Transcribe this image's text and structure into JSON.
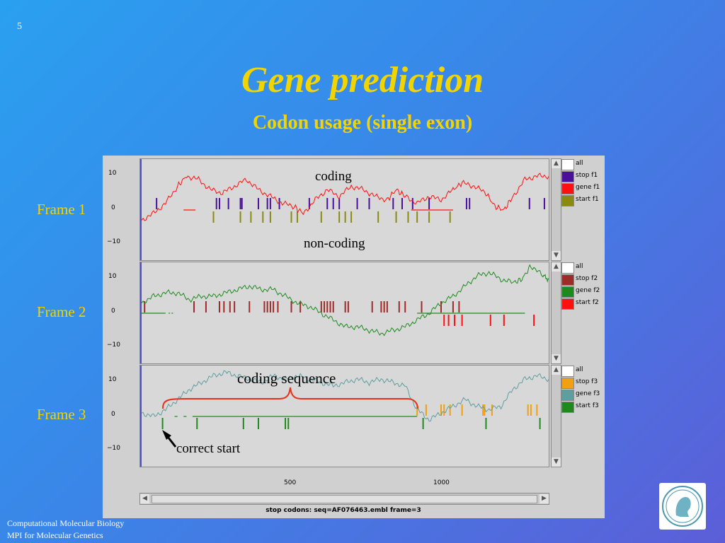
{
  "slide": {
    "number": "5",
    "title": "Gene prediction",
    "subtitle": "Codon usage (single exon)",
    "frame_labels": [
      "Frame 1",
      "Frame 2",
      "Frame 3"
    ],
    "annotations": {
      "coding": "coding",
      "non_coding": "non-coding",
      "coding_sequence": "coding sequence",
      "correct_start": "correct start"
    },
    "footer": {
      "line1": "Computational Molecular Biology",
      "line2": "MPI for Molecular Genetics"
    },
    "logo": "max-planck-logo"
  },
  "app": {
    "y_ticks": [
      "10",
      "0",
      "−10"
    ],
    "x_ticks": [
      "500",
      "1000"
    ],
    "status_text": "stop codons: seq=AF076463.embl frame=3",
    "panels": [
      {
        "legend": [
          {
            "label": "all",
            "color": "#ffffff"
          },
          {
            "label": "stop f1",
            "color": "#4b0f9e"
          },
          {
            "label": "gene f1",
            "color": "#ff1010"
          },
          {
            "label": "start f1",
            "color": "#8a8a10"
          }
        ],
        "curve_color": "#ff1010",
        "stop_color": "#4b0f9e",
        "start_color": "#8a8a10",
        "gene_color": "#ff1010",
        "stops": [
          50,
          250,
          260,
          290,
          330,
          335,
          390,
          420,
          430,
          460,
          560,
          620,
          640,
          660,
          720,
          760,
          840,
          870,
          905,
          960,
          1085,
          1095,
          1295,
          1345
        ],
        "starts": [
          240,
          330,
          365,
          405,
          430,
          500,
          520,
          600,
          660,
          680,
          700,
          790,
          850,
          890,
          920,
          960,
          1030
        ],
        "gene_segments": [
          [
            140,
            180
          ],
          [
            900,
            1040
          ]
        ],
        "curve": [
          [
            0,
            -3
          ],
          [
            40,
            -1
          ],
          [
            80,
            2
          ],
          [
            120,
            7
          ],
          [
            150,
            10
          ],
          [
            190,
            9
          ],
          [
            230,
            6
          ],
          [
            270,
            5
          ],
          [
            310,
            7
          ],
          [
            350,
            9
          ],
          [
            390,
            6
          ],
          [
            430,
            4
          ],
          [
            470,
            2
          ],
          [
            510,
            1
          ],
          [
            540,
            -1
          ],
          [
            580,
            3
          ],
          [
            620,
            6
          ],
          [
            660,
            4
          ],
          [
            700,
            7
          ],
          [
            740,
            6
          ],
          [
            780,
            4
          ],
          [
            820,
            3
          ],
          [
            850,
            6
          ],
          [
            880,
            4
          ],
          [
            920,
            2
          ],
          [
            960,
            4
          ],
          [
            1000,
            3
          ],
          [
            1040,
            6
          ],
          [
            1070,
            8
          ],
          [
            1110,
            7
          ],
          [
            1150,
            5
          ],
          [
            1180,
            1
          ],
          [
            1210,
            0
          ],
          [
            1240,
            4
          ],
          [
            1280,
            9
          ],
          [
            1320,
            10
          ],
          [
            1360,
            10
          ]
        ]
      },
      {
        "legend": [
          {
            "label": "all",
            "color": "#ffffff"
          },
          {
            "label": "stop f2",
            "color": "#9e2a2a"
          },
          {
            "label": "gene f2",
            "color": "#1e8a1e"
          },
          {
            "label": "start f2",
            "color": "#ff1010"
          }
        ],
        "curve_color": "#1e8a1e",
        "stop_color": "#9e2a2a",
        "start_color": "#ff1010",
        "gene_color": "#1e8a1e",
        "stops": [
          10,
          175,
          215,
          260,
          275,
          295,
          310,
          360,
          410,
          420,
          430,
          440,
          455,
          500,
          530,
          600,
          610,
          620,
          630,
          640,
          680,
          690,
          770,
          800,
          810,
          820,
          860,
          880,
          935,
          1000,
          1040,
          1060
        ],
        "starts": [
          1010,
          1025,
          1045,
          1070,
          1165,
          1210,
          1310
        ],
        "gene_segments": [
          [
            0,
            80
          ],
          [
            90,
            95
          ],
          [
            100,
            105
          ],
          [
            920,
            1280
          ]
        ],
        "curve": [
          [
            0,
            3
          ],
          [
            40,
            5
          ],
          [
            80,
            6
          ],
          [
            120,
            6
          ],
          [
            160,
            4
          ],
          [
            200,
            5
          ],
          [
            240,
            5
          ],
          [
            280,
            6
          ],
          [
            320,
            7
          ],
          [
            360,
            8
          ],
          [
            400,
            7
          ],
          [
            440,
            7
          ],
          [
            480,
            5
          ],
          [
            520,
            3
          ],
          [
            560,
            2
          ],
          [
            600,
            0
          ],
          [
            640,
            -2
          ],
          [
            680,
            -4
          ],
          [
            720,
            -4
          ],
          [
            760,
            -5
          ],
          [
            800,
            -6
          ],
          [
            840,
            -5
          ],
          [
            880,
            -4
          ],
          [
            920,
            -2
          ],
          [
            960,
            0
          ],
          [
            1000,
            3
          ],
          [
            1040,
            5
          ],
          [
            1080,
            8
          ],
          [
            1120,
            11
          ],
          [
            1160,
            12
          ],
          [
            1200,
            10
          ],
          [
            1240,
            9
          ],
          [
            1270,
            10
          ],
          [
            1300,
            14
          ],
          [
            1340,
            11
          ],
          [
            1360,
            10
          ]
        ]
      },
      {
        "legend": [
          {
            "label": "all",
            "color": "#ffffff"
          },
          {
            "label": "stop f3",
            "color": "#f0a010"
          },
          {
            "label": "gene f3",
            "color": "#5f9ea0"
          },
          {
            "label": "start f3",
            "color": "#1e8a1e"
          }
        ],
        "curve_color": "#5f9ea0",
        "stop_color": "#f0a010",
        "start_color": "#1e8a1e",
        "gene_color": "#1e8a1e",
        "stops": [
          920,
          950,
          1000,
          1010,
          1030,
          1070,
          1140,
          1145,
          1170,
          1290,
          1300,
          1320
        ],
        "starts": [
          70,
          185,
          340,
          390,
          480,
          490,
          940,
          1150,
          1330
        ],
        "gene_segments": [
          [
            110,
            120
          ],
          [
            140,
            150
          ],
          [
            170,
            920
          ]
        ],
        "curve": [
          [
            0,
            1
          ],
          [
            40,
            0
          ],
          [
            80,
            2
          ],
          [
            120,
            5
          ],
          [
            160,
            8
          ],
          [
            200,
            10
          ],
          [
            240,
            12
          ],
          [
            280,
            13
          ],
          [
            320,
            12
          ],
          [
            360,
            11
          ],
          [
            400,
            10
          ],
          [
            440,
            12
          ],
          [
            480,
            11
          ],
          [
            520,
            12
          ],
          [
            560,
            11
          ],
          [
            600,
            10
          ],
          [
            640,
            9
          ],
          [
            680,
            10
          ],
          [
            720,
            11
          ],
          [
            760,
            10
          ],
          [
            800,
            11
          ],
          [
            840,
            10
          ],
          [
            880,
            9
          ],
          [
            920,
            2
          ],
          [
            960,
            -1
          ],
          [
            1000,
            1
          ],
          [
            1040,
            3
          ],
          [
            1080,
            5
          ],
          [
            1120,
            3
          ],
          [
            1160,
            2
          ],
          [
            1200,
            3
          ],
          [
            1240,
            8
          ],
          [
            1280,
            11
          ],
          [
            1320,
            12
          ],
          [
            1360,
            11
          ]
        ]
      }
    ]
  }
}
